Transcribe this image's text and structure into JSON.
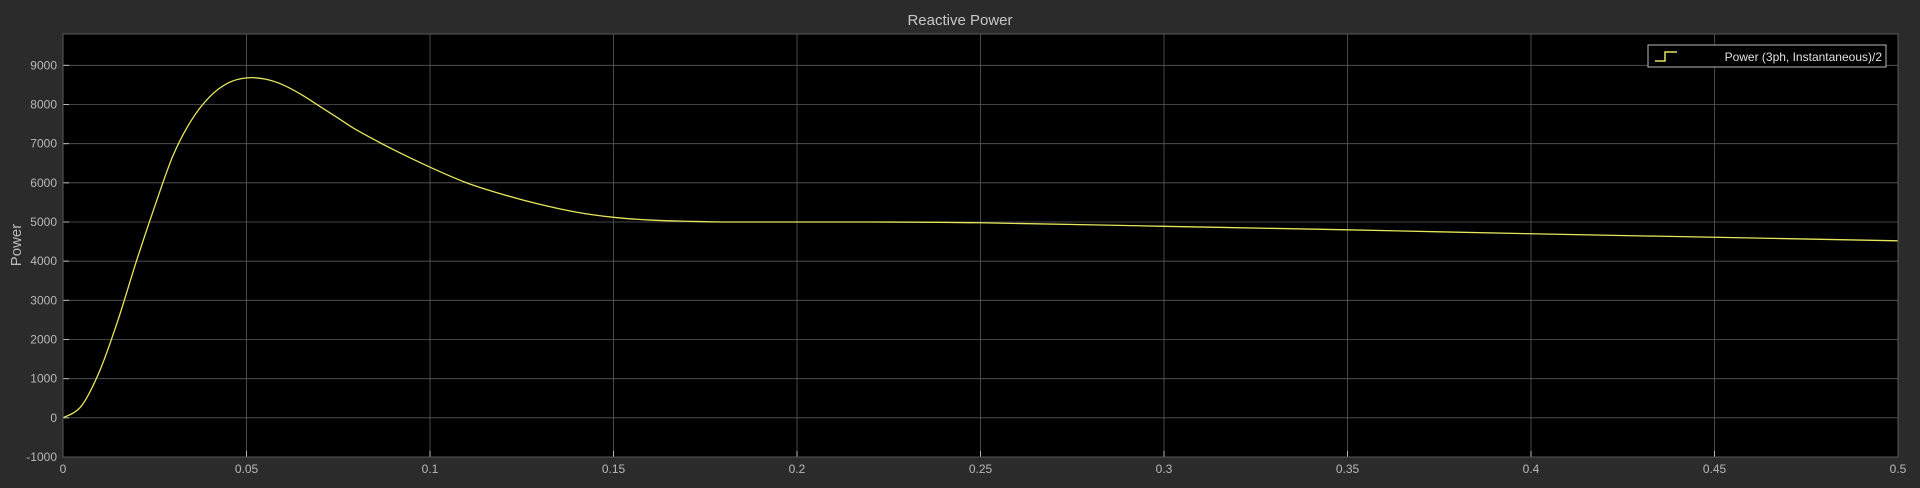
{
  "chart_data": {
    "type": "line",
    "title": "Reactive Power",
    "xlabel": "",
    "ylabel": "Power",
    "xlim": [
      0,
      0.5
    ],
    "ylim": [
      -1000,
      9800
    ],
    "x_ticks": [
      0,
      0.05,
      0.1,
      0.15,
      0.2,
      0.25,
      0.3,
      0.35,
      0.4,
      0.45,
      0.5
    ],
    "x_tick_labels": [
      "0",
      "0.05",
      "0.1",
      "0.15",
      "0.2",
      "0.25",
      "0.3",
      "0.35",
      "0.4",
      "0.45",
      "0.5"
    ],
    "y_ticks": [
      -1000,
      0,
      1000,
      2000,
      3000,
      4000,
      5000,
      6000,
      7000,
      8000,
      9000
    ],
    "y_tick_labels": [
      "-1000",
      "0",
      "1000",
      "2000",
      "3000",
      "4000",
      "5000",
      "6000",
      "7000",
      "8000",
      "9000"
    ],
    "grid": true,
    "legend_position": "top-right",
    "series": [
      {
        "name": "Power (3ph, Instantaneous)/2",
        "color": "#e6e65c",
        "x": [
          0,
          0.005,
          0.01,
          0.015,
          0.02,
          0.025,
          0.03,
          0.035,
          0.04,
          0.045,
          0.05,
          0.055,
          0.06,
          0.065,
          0.07,
          0.075,
          0.08,
          0.09,
          0.1,
          0.11,
          0.12,
          0.13,
          0.14,
          0.15,
          0.16,
          0.17,
          0.18,
          0.2,
          0.22,
          0.25,
          0.3,
          0.35,
          0.4,
          0.45,
          0.5
        ],
        "y": [
          0,
          300,
          1200,
          2500,
          4000,
          5400,
          6700,
          7600,
          8200,
          8550,
          8680,
          8650,
          8500,
          8250,
          7950,
          7650,
          7350,
          6850,
          6400,
          6000,
          5700,
          5450,
          5250,
          5120,
          5050,
          5020,
          5000,
          5000,
          5000,
          4980,
          4890,
          4800,
          4700,
          4610,
          4520
        ]
      }
    ],
    "colors": {
      "figure_background": "#2b2b2b",
      "axes_background": "#000000",
      "grid": "#5a5a5a",
      "text": "#b8b8b8",
      "title": "#c8c8c8"
    }
  }
}
